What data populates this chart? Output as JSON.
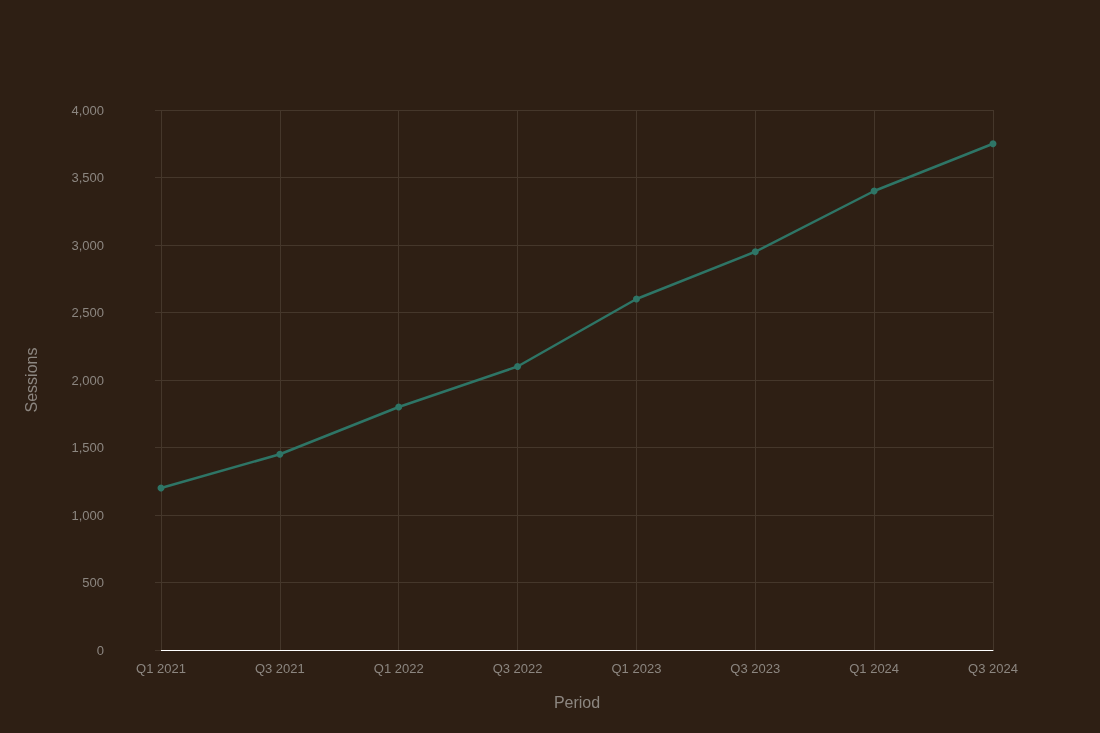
{
  "chart_data": {
    "type": "line",
    "xlabel": "Period",
    "ylabel": "Sessions",
    "categories": [
      "Q1 2021",
      "Q3 2021",
      "Q1 2022",
      "Q3 2022",
      "Q1 2023",
      "Q3 2023",
      "Q1 2024",
      "Q3 2024"
    ],
    "series": [
      {
        "color": "#2e7566",
        "values": [
          1200,
          1450,
          1800,
          2100,
          2600,
          2950,
          3400,
          3750
        ]
      }
    ],
    "ylim": [
      0,
      4000
    ],
    "yticks": [
      {
        "value": 0,
        "label": "0"
      },
      {
        "value": 500,
        "label": "500"
      },
      {
        "value": 1000,
        "label": "1,000"
      },
      {
        "value": 1500,
        "label": "1,500"
      },
      {
        "value": 2000,
        "label": "2,000"
      },
      {
        "value": 2500,
        "label": "2,500"
      },
      {
        "value": 3000,
        "label": "3,000"
      },
      {
        "value": 3500,
        "label": "3,500"
      },
      {
        "value": 4000,
        "label": "4,000"
      }
    ],
    "grid": true,
    "marker": "circle",
    "line_style": "solid"
  }
}
